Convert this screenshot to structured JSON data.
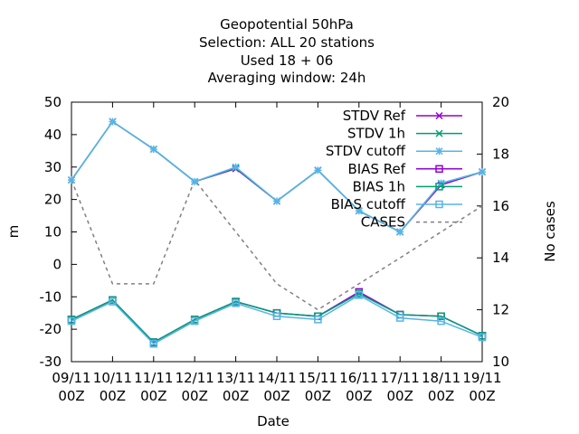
{
  "chart_data": {
    "type": "line",
    "title_lines": [
      "Geopotential 50hPa",
      "Selection: ALL      20 stations",
      "Used  18 + 06",
      "Averaging window: 24h"
    ],
    "xlabel": "Date",
    "ylabel": "m",
    "y2label": "No cases",
    "x_ticks": [
      {
        "top": "09/11",
        "bottom": "00Z"
      },
      {
        "top": "10/11",
        "bottom": "00Z"
      },
      {
        "top": "11/11",
        "bottom": "00Z"
      },
      {
        "top": "12/11",
        "bottom": "00Z"
      },
      {
        "top": "13/11",
        "bottom": "00Z"
      },
      {
        "top": "14/11",
        "bottom": "00Z"
      },
      {
        "top": "15/11",
        "bottom": "00Z"
      },
      {
        "top": "16/11",
        "bottom": "00Z"
      },
      {
        "top": "17/11",
        "bottom": "00Z"
      },
      {
        "top": "18/11",
        "bottom": "00Z"
      },
      {
        "top": "19/11",
        "bottom": "00Z"
      }
    ],
    "ylim": [
      -30,
      50
    ],
    "y_ticks": [
      -30,
      -20,
      -10,
      0,
      10,
      20,
      30,
      40,
      50
    ],
    "y2lim": [
      10,
      20
    ],
    "y2_ticks": [
      10,
      12,
      14,
      16,
      18,
      20
    ],
    "grid": false,
    "legend_position": "top-right",
    "series": [
      {
        "name": "STDV Ref",
        "axis": "y1",
        "color": "#9400d3",
        "marker": "x",
        "line": "solid",
        "values": [
          26,
          44,
          35.5,
          25.5,
          29.5,
          19.5,
          29,
          16.5,
          10,
          24.5,
          28.5
        ]
      },
      {
        "name": "STDV 1h",
        "axis": "y1",
        "color": "#009e73",
        "marker": "x",
        "line": "solid",
        "values": [
          26,
          44,
          35.5,
          25.5,
          29.8,
          19.5,
          29,
          16.5,
          10,
          25,
          28.5
        ]
      },
      {
        "name": "STDV cutoff",
        "axis": "y1",
        "color": "#56b4e9",
        "marker": "asterisk",
        "line": "solid",
        "values": [
          26,
          44,
          35.5,
          25.5,
          30,
          19.5,
          29,
          16.5,
          10,
          25,
          28.5
        ]
      },
      {
        "name": "BIAS Ref",
        "axis": "y1",
        "color": "#9400d3",
        "marker": "square",
        "line": "solid",
        "values": [
          -17,
          -11,
          -24,
          -17,
          -11.5,
          -15,
          -16,
          -8.5,
          -15.5,
          -16,
          -22
        ]
      },
      {
        "name": "BIAS 1h",
        "axis": "y1",
        "color": "#009e73",
        "marker": "square",
        "line": "solid",
        "values": [
          -17,
          -11,
          -24,
          -17,
          -11.5,
          -15,
          -16,
          -9,
          -15.5,
          -16,
          -22
        ]
      },
      {
        "name": "BIAS cutoff",
        "axis": "y1",
        "color": "#56b4e9",
        "marker": "square",
        "line": "solid",
        "values": [
          -17.5,
          -11.5,
          -24.5,
          -17.5,
          -12,
          -16,
          -17,
          -9.5,
          -16.5,
          -17.5,
          -22.5
        ]
      },
      {
        "name": "CASES",
        "axis": "y2",
        "color": "#808080",
        "marker": "none",
        "line": "dashed",
        "values": [
          17,
          13,
          13,
          17,
          15,
          13,
          12,
          13,
          14,
          15,
          16
        ]
      }
    ]
  }
}
